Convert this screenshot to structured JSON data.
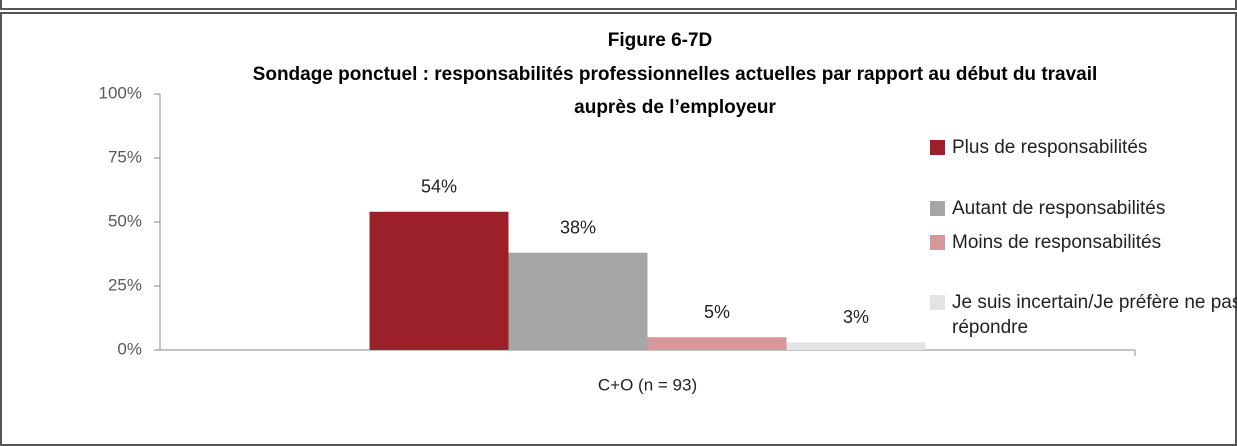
{
  "chart_data": {
    "type": "bar",
    "title": "Figure 6-7D",
    "subtitle": "Sondage ponctuel : responsabilités professionnelles actuelles par rapport au début du travail auprès de l’employeur",
    "categories": [
      "C+O (n = 93)"
    ],
    "series": [
      {
        "name": "Plus de responsabilités",
        "color": "#9b2029",
        "values": [
          54
        ],
        "value_labels": [
          "54%"
        ]
      },
      {
        "name": "Autant de responsabilités",
        "color": "#a6a6a6",
        "values": [
          38
        ],
        "value_labels": [
          "38%"
        ]
      },
      {
        "name": "Moins de responsabilités",
        "color": "#d4979b",
        "values": [
          5
        ],
        "value_labels": [
          "5%"
        ]
      },
      {
        "name": "Je suis incertain/Je préfère ne pas répondre",
        "color": "#e3e3e3",
        "values": [
          3
        ],
        "value_labels": [
          "3%"
        ]
      }
    ],
    "ylim": [
      0,
      100
    ],
    "yticks": [
      {
        "value": 0,
        "label": "0%"
      },
      {
        "value": 25,
        "label": "25%"
      },
      {
        "value": 50,
        "label": "50%"
      },
      {
        "value": 75,
        "label": "75%"
      },
      {
        "value": 100,
        "label": "100%"
      }
    ],
    "grid": false,
    "legend": "right"
  }
}
